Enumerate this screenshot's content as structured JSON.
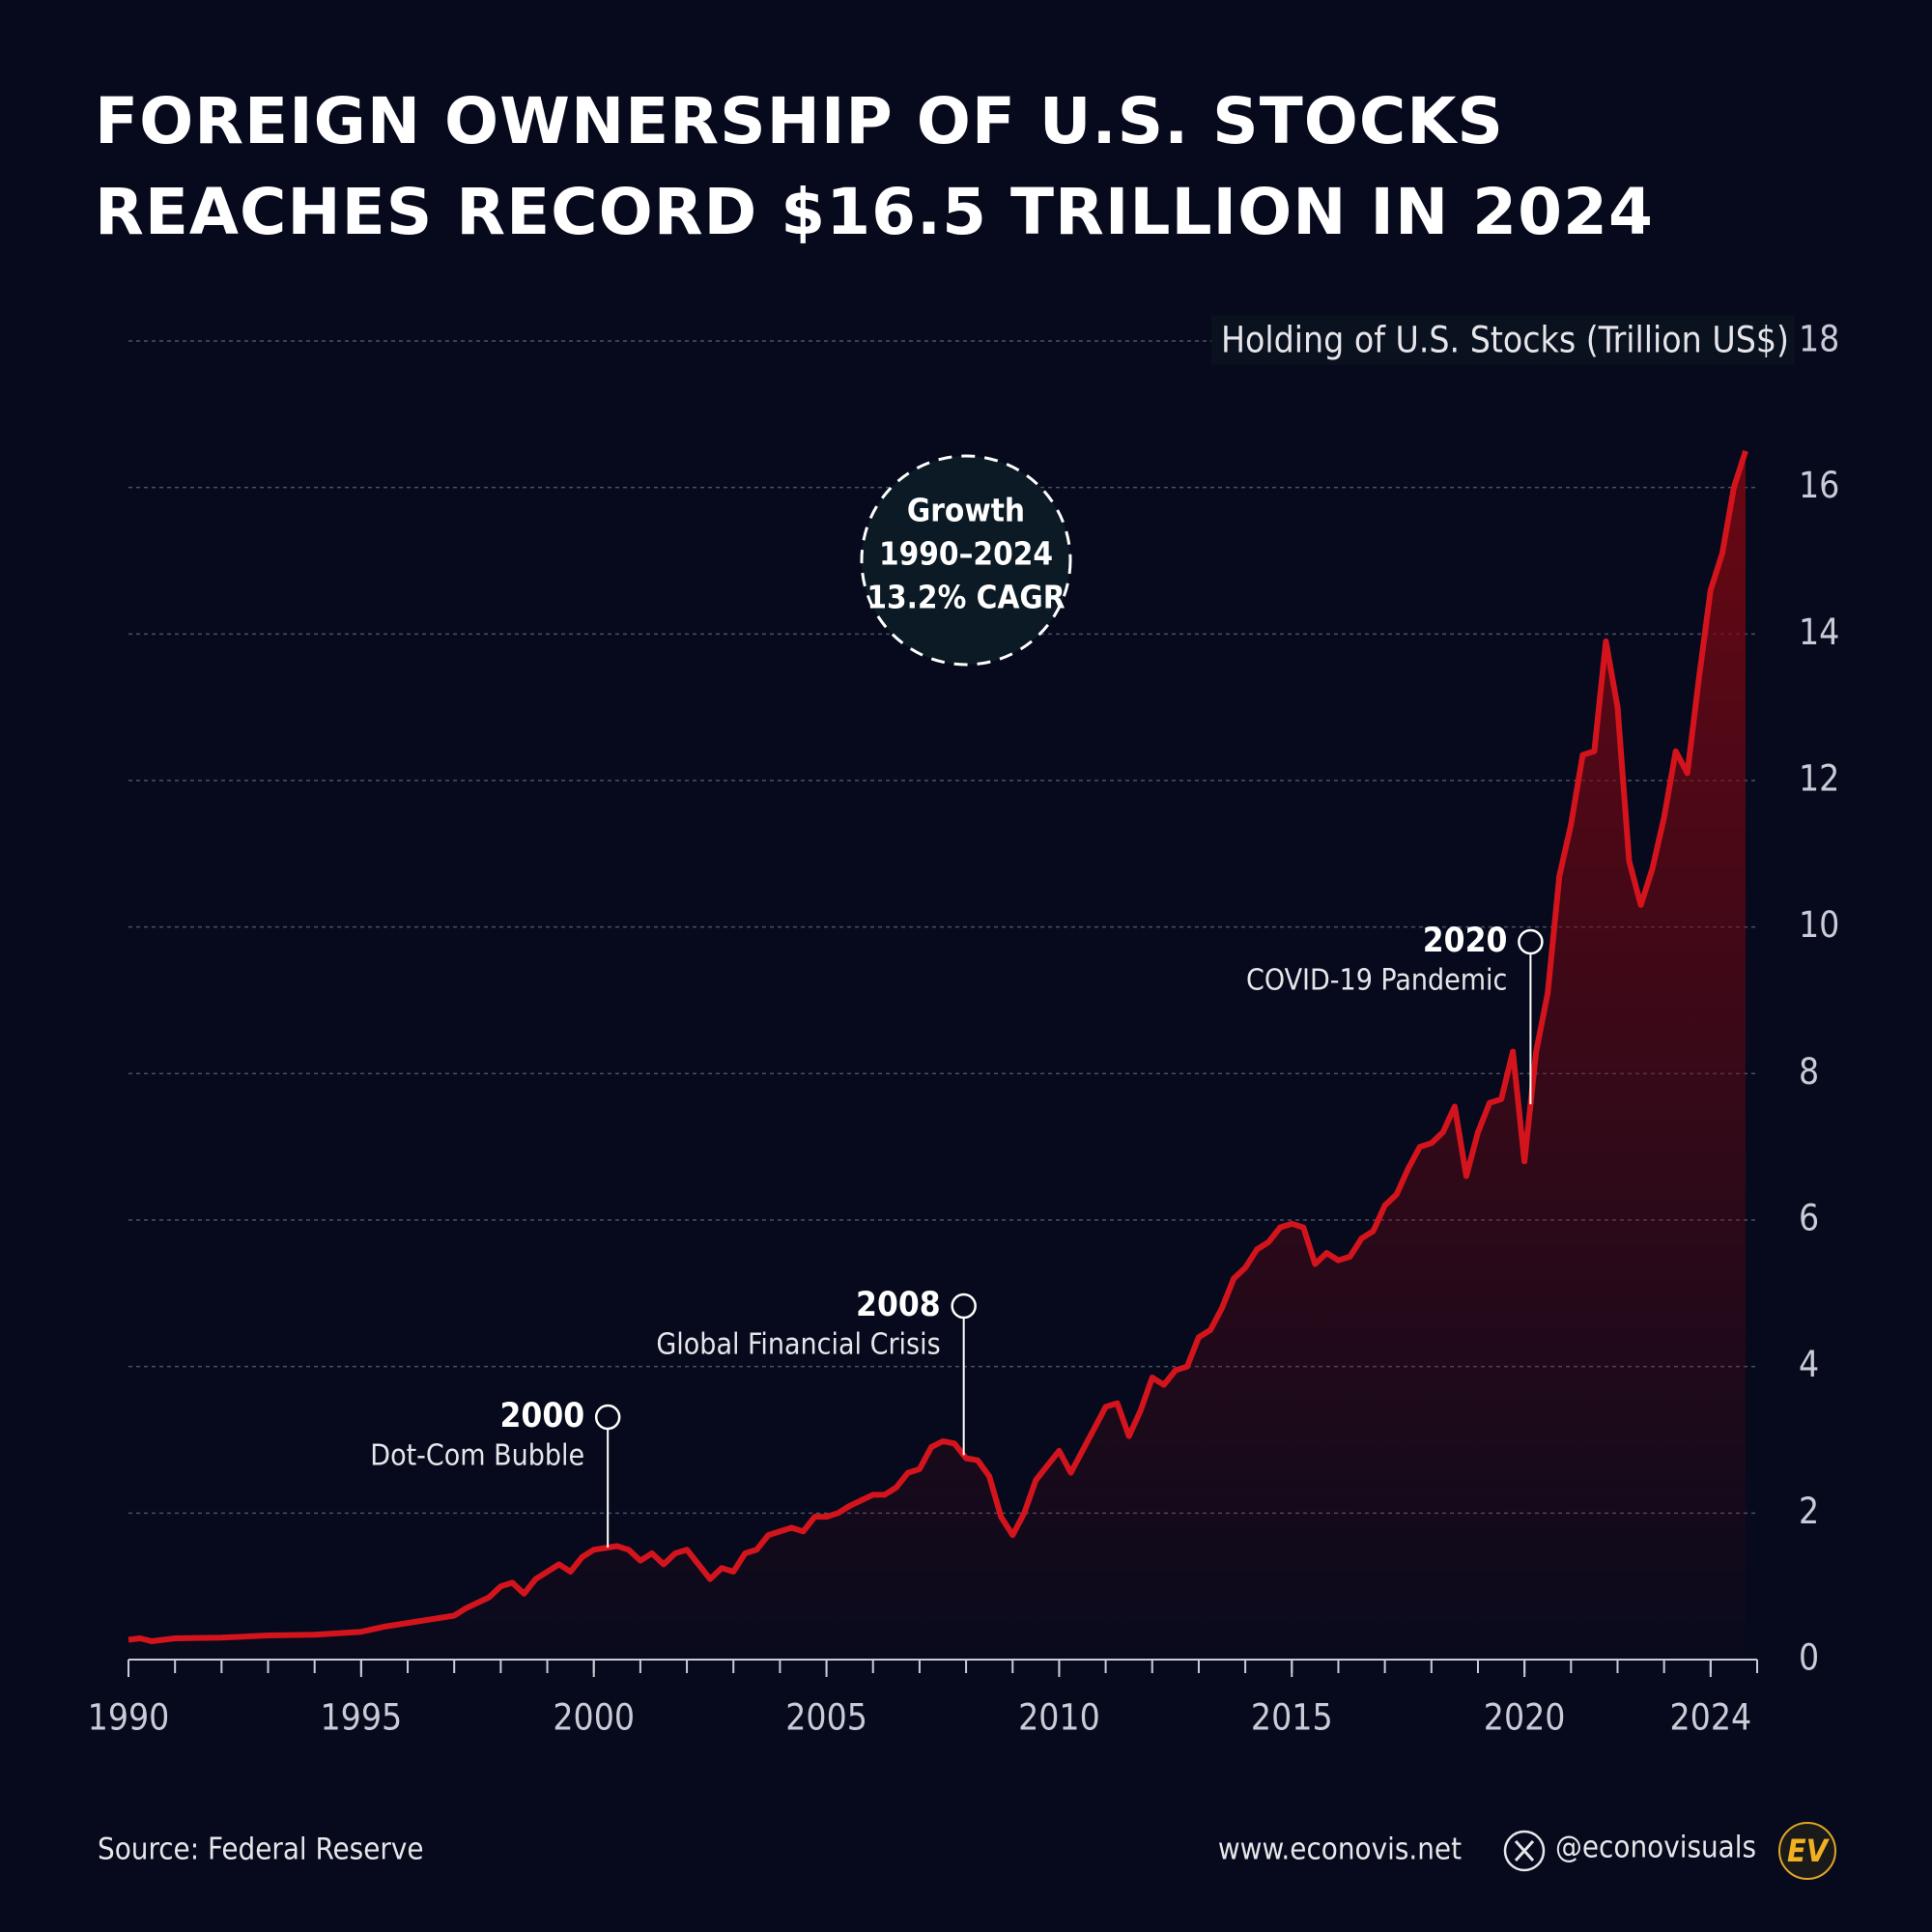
{
  "chart_data": {
    "type": "area-line",
    "title": [
      "FOREIGN OWNERSHIP OF U.S. STOCKS",
      "REACHES RECORD $16.5 TRILLION IN 2024"
    ],
    "y_label": "Holding of U.S. Stocks (Trillion US$)",
    "color": "#d4141c",
    "x": [
      1990,
      1990.25,
      1990.5,
      1990.75,
      1991,
      1992,
      1993,
      1994,
      1994.5,
      1995,
      1995.5,
      1996,
      1996.5,
      1997,
      1997.25,
      1997.75,
      1998,
      1998.25,
      1998.5,
      1998.75,
      1999.25,
      1999.5,
      1999.75,
      2000,
      2000.5,
      2000.75,
      2001,
      2001.25,
      2001.5,
      2001.75,
      2002,
      2002.5,
      2002.75,
      2003,
      2003.25,
      2003.5,
      2003.75,
      2004.25,
      2004.5,
      2004.75,
      2005,
      2005.25,
      2005.5,
      2006,
      2006.25,
      2006.5,
      2006.75,
      2007,
      2007.25,
      2007.5,
      2007.75,
      2008,
      2008.25,
      2008.5,
      2008.75,
      2009,
      2009.25,
      2009.5,
      2009.75,
      2010,
      2010.25,
      2010.5,
      2010.75,
      2011,
      2011.25,
      2011.5,
      2011.75,
      2012,
      2012.25,
      2012.5,
      2012.75,
      2013,
      2013.25,
      2013.5,
      2013.75,
      2014,
      2014.25,
      2014.5,
      2014.75,
      2015,
      2015.25,
      2015.5,
      2015.75,
      2016,
      2016.25,
      2016.5,
      2016.75,
      2017,
      2017.25,
      2017.5,
      2017.75,
      2018,
      2018.25,
      2018.5,
      2018.75,
      2019,
      2019.25,
      2019.5,
      2019.75,
      2020,
      2020.25,
      2020.5,
      2020.75,
      2021,
      2021.25,
      2021.5,
      2021.75,
      2022,
      2022.25,
      2022.5,
      2022.75,
      2023,
      2023.25,
      2023.5,
      2023.75,
      2024,
      2024.25,
      2024.5,
      2024.75
    ],
    "values": [
      0.27,
      0.29,
      0.25,
      0.27,
      0.29,
      0.3,
      0.33,
      0.34,
      0.36,
      0.38,
      0.45,
      0.5,
      0.55,
      0.6,
      0.7,
      0.85,
      1.0,
      1.05,
      0.9,
      1.1,
      1.3,
      1.2,
      1.4,
      1.5,
      1.55,
      1.5,
      1.35,
      1.45,
      1.3,
      1.45,
      1.5,
      1.1,
      1.25,
      1.2,
      1.45,
      1.5,
      1.7,
      1.8,
      1.75,
      1.95,
      1.95,
      2.0,
      2.1,
      2.25,
      2.25,
      2.35,
      2.55,
      2.6,
      2.9,
      2.98,
      2.95,
      2.75,
      2.72,
      2.5,
      1.95,
      1.7,
      2.0,
      2.45,
      2.65,
      2.85,
      2.55,
      2.85,
      3.15,
      3.45,
      3.5,
      3.05,
      3.4,
      3.85,
      3.75,
      3.95,
      4.0,
      4.4,
      4.5,
      4.8,
      5.2,
      5.35,
      5.6,
      5.7,
      5.9,
      5.95,
      5.9,
      5.4,
      5.55,
      5.45,
      5.5,
      5.75,
      5.85,
      6.2,
      6.35,
      6.7,
      7.0,
      7.05,
      7.2,
      7.55,
      6.6,
      7.2,
      7.6,
      7.65,
      8.3,
      6.8,
      8.3,
      9.1,
      10.7,
      11.4,
      12.35,
      12.4,
      13.9,
      13.0,
      10.9,
      10.3,
      10.8,
      11.5,
      12.4,
      12.1,
      13.4,
      14.6,
      15.1,
      16.0,
      16.5
    ],
    "xlim": [
      1990,
      2025
    ],
    "xticks": [
      1990,
      1995,
      2000,
      2005,
      2010,
      2015,
      2020,
      2024
    ],
    "ylim": [
      0,
      18
    ],
    "yticks": [
      0,
      2,
      4,
      6,
      8,
      10,
      12,
      14,
      16,
      18
    ],
    "grid": true,
    "annotations": [
      {
        "label": "2000",
        "text": "Dot-Com Bubble",
        "x": 2000.3
      },
      {
        "label": "2008",
        "text": "Global Financial Crisis",
        "x": 2007.95
      },
      {
        "label": "2020",
        "text": "COVID-19 Pandemic",
        "x": 2020.13
      }
    ],
    "callout": [
      "Growth",
      "1990–2024",
      "13.2% CAGR"
    ]
  },
  "footer": {
    "source": "Source: Federal Reserve",
    "website": "www.econovis.net",
    "handle": "@econovisuals",
    "logo": "EV"
  }
}
